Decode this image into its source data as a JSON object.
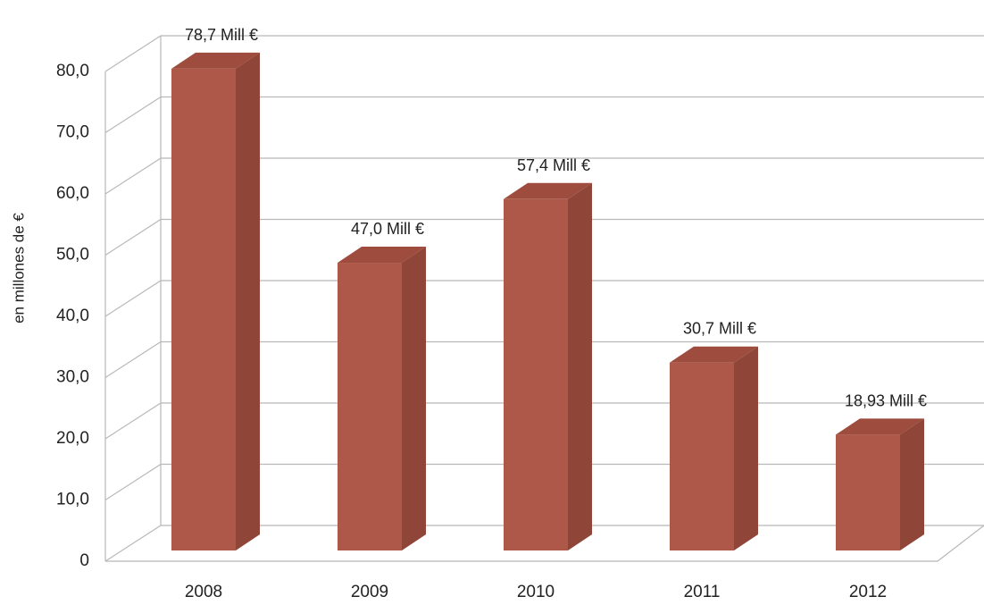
{
  "chart_data": {
    "type": "bar",
    "style": "3d-column",
    "categories": [
      "2008",
      "2009",
      "2010",
      "2011",
      "2012"
    ],
    "values": [
      78.7,
      47.0,
      57.4,
      30.7,
      18.93
    ],
    "data_labels": [
      "78,7 Mill €",
      "47,0 Mill €",
      "57,4 Mill €",
      "30,7 Mill €",
      "18,93 Mill €"
    ],
    "title": "",
    "xlabel": "",
    "ylabel": "en millones de €",
    "ylim": [
      0,
      80
    ],
    "yticks": [
      0,
      10,
      20,
      30,
      40,
      50,
      60,
      70,
      80
    ],
    "ytick_labels": [
      "0",
      "10,0",
      "20,0",
      "30,0",
      "40,0",
      "50,0",
      "60,0",
      "70,0",
      "80,0"
    ],
    "grid": true,
    "legend": "none",
    "colors": {
      "bar_front": "#ad5848",
      "bar_side": "#8f4538",
      "bar_top": "#9e4c3e",
      "grid": "#b8b8b8"
    }
  }
}
